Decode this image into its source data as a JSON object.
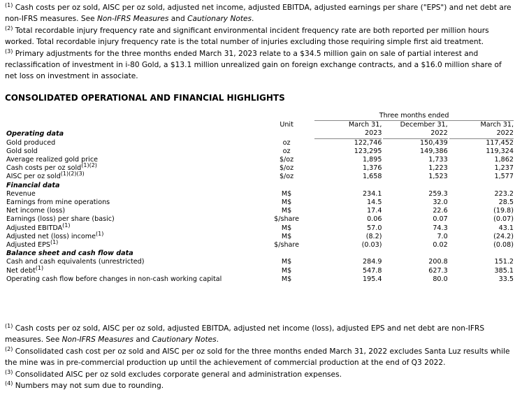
{
  "top_notes": [
    {
      "marker": "(1)",
      "parts": [
        "Cash costs per oz sold, AISC per oz sold, adjusted net income, adjusted EBITDA, adjusted earnings per share (\"EPS\") and net debt are non-IFRS measures. See ",
        "Non-IFRS Measures",
        " and ",
        "Cautionary Notes",
        "."
      ]
    },
    {
      "marker": "(2)",
      "parts": [
        "Total recordable injury frequency rate and significant environmental incident frequency rate are both reported per million hours worked. Total recordable injury frequency rate is the total number of injuries excluding those requiring simple first aid treatment."
      ]
    },
    {
      "marker": "(3)",
      "parts": [
        "Primary adjustments for the three months ended March 31, 2023 relate to a $34.5 million gain on sale of partial interest and reclassification of investment in i-80 Gold, a $13.1 million unrealized gain on foreign exchange contracts, and a $16.0 million share of net loss on investment in associate."
      ]
    }
  ],
  "table": {
    "title": "CONSOLIDATED OPERATIONAL AND FINANCIAL HIGHLIGHTS",
    "unit_header": "Unit",
    "period": "Three months ended",
    "columns": [
      [
        "March 31,",
        "2023"
      ],
      [
        "December 31,",
        "2022"
      ],
      [
        "March 31,",
        "2022"
      ]
    ],
    "sections": [
      {
        "title": "Operating data",
        "rows": [
          {
            "label": "Gold produced",
            "unit": "oz",
            "values": [
              "122,746",
              "150,439",
              "117,452"
            ]
          },
          {
            "label": "Gold sold",
            "unit": "oz",
            "values": [
              "123,295",
              "149,386",
              "119,324"
            ]
          },
          {
            "label": "Average realized gold price",
            "unit": "$/oz",
            "values": [
              "1,895",
              "1,733",
              "1,862"
            ]
          },
          {
            "label": "Cash costs per oz sold",
            "note": "(1)(2)",
            "unit": "$/oz",
            "values": [
              "1,376",
              "1,223",
              "1,237"
            ]
          },
          {
            "label": "AISC per oz sold",
            "note": "(1)(2)(3)",
            "unit": "$/oz",
            "values": [
              "1,658",
              "1,523",
              "1,577"
            ]
          }
        ]
      },
      {
        "title": "Financial data",
        "rows": [
          {
            "label": "Revenue",
            "unit": "M$",
            "values": [
              "234.1",
              "259.3",
              "223.2"
            ]
          },
          {
            "label": "Earnings from mine operations",
            "unit": "M$",
            "values": [
              "14.5",
              "32.0",
              "28.5"
            ]
          },
          {
            "label": "Net income (loss)",
            "unit": "M$",
            "values": [
              "17.4",
              "22.6",
              "(19.8)"
            ]
          },
          {
            "label": "Earnings (loss) per share (basic)",
            "unit": "$/share",
            "values": [
              "0.06",
              "0.07",
              "(0.07)"
            ]
          },
          {
            "label": "Adjusted EBITDA",
            "note": "(1)",
            "unit": "M$",
            "values": [
              "57.0",
              "74.3",
              "43.1"
            ]
          },
          {
            "label": "Adjusted net (loss) income",
            "note": "(1)",
            "unit": "M$",
            "values": [
              "(8.2)",
              "7.0",
              "(24.2)"
            ]
          },
          {
            "label": "Adjusted EPS",
            "note": "(1)",
            "unit": "$/share",
            "values": [
              "(0.03)",
              "0.02",
              "(0.08)"
            ]
          }
        ]
      },
      {
        "title": "Balance sheet and cash flow data",
        "rows": [
          {
            "label": "Cash and cash equivalents (unrestricted)",
            "unit": "M$",
            "values": [
              "284.9",
              "200.8",
              "151.2"
            ]
          },
          {
            "label": "Net debt",
            "note": "(1)",
            "unit": "M$",
            "values": [
              "547.8",
              "627.3",
              "385.1"
            ]
          },
          {
            "label": "Operating cash flow before changes in non-cash working capital",
            "unit": "M$",
            "values": [
              "195.4",
              "80.0",
              "33.5"
            ]
          }
        ]
      }
    ]
  },
  "bottom_notes": [
    {
      "marker": "(1)",
      "parts": [
        "Cash costs per oz sold, AISC per oz sold, adjusted EBITDA, adjusted net income (loss), adjusted EPS and net debt are non-IFRS measures. See ",
        "Non-IFRS Measures",
        " and ",
        "Cautionary Notes",
        "."
      ]
    },
    {
      "marker": "(2)",
      "parts": [
        "Consolidated cash cost per oz sold and AISC per oz sold for the three months ended March 31, 2022 excludes Santa Luz results while the mine was in pre-commercial production up until the achievement of commercial production at the end of Q3 2022."
      ]
    },
    {
      "marker": "(3)",
      "parts": [
        "Consolidated AISC per oz sold excludes corporate general and administration expenses."
      ]
    },
    {
      "marker": "(4)",
      "parts": [
        "Numbers may not sum due to rounding."
      ]
    }
  ]
}
